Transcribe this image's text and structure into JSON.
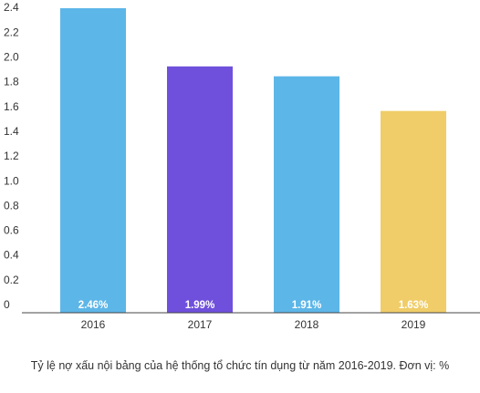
{
  "chart_data": {
    "type": "bar",
    "categories": [
      "2016",
      "2017",
      "2018",
      "2019"
    ],
    "values": [
      2.46,
      1.99,
      1.91,
      1.63
    ],
    "data_labels": [
      "2.46%",
      "1.99%",
      "1.91%",
      "1.63%"
    ],
    "bar_colors": [
      "#5db6e8",
      "#6f50dc",
      "#5db6e8",
      "#f0cd68"
    ],
    "yticks": [
      "0",
      "0.2",
      "0.4",
      "0.6",
      "0.8",
      "1.0",
      "1.2",
      "1.4",
      "1.6",
      "1.8",
      "2.0",
      "2.2",
      "2.4"
    ],
    "ylim": [
      0,
      2.46
    ],
    "grid": false,
    "legend": "none",
    "caption": "Tỷ lệ nợ xấu nội bảng của hệ thống tổ chức tín dụng từ năm 2016-2019. Đơn vị: %"
  }
}
